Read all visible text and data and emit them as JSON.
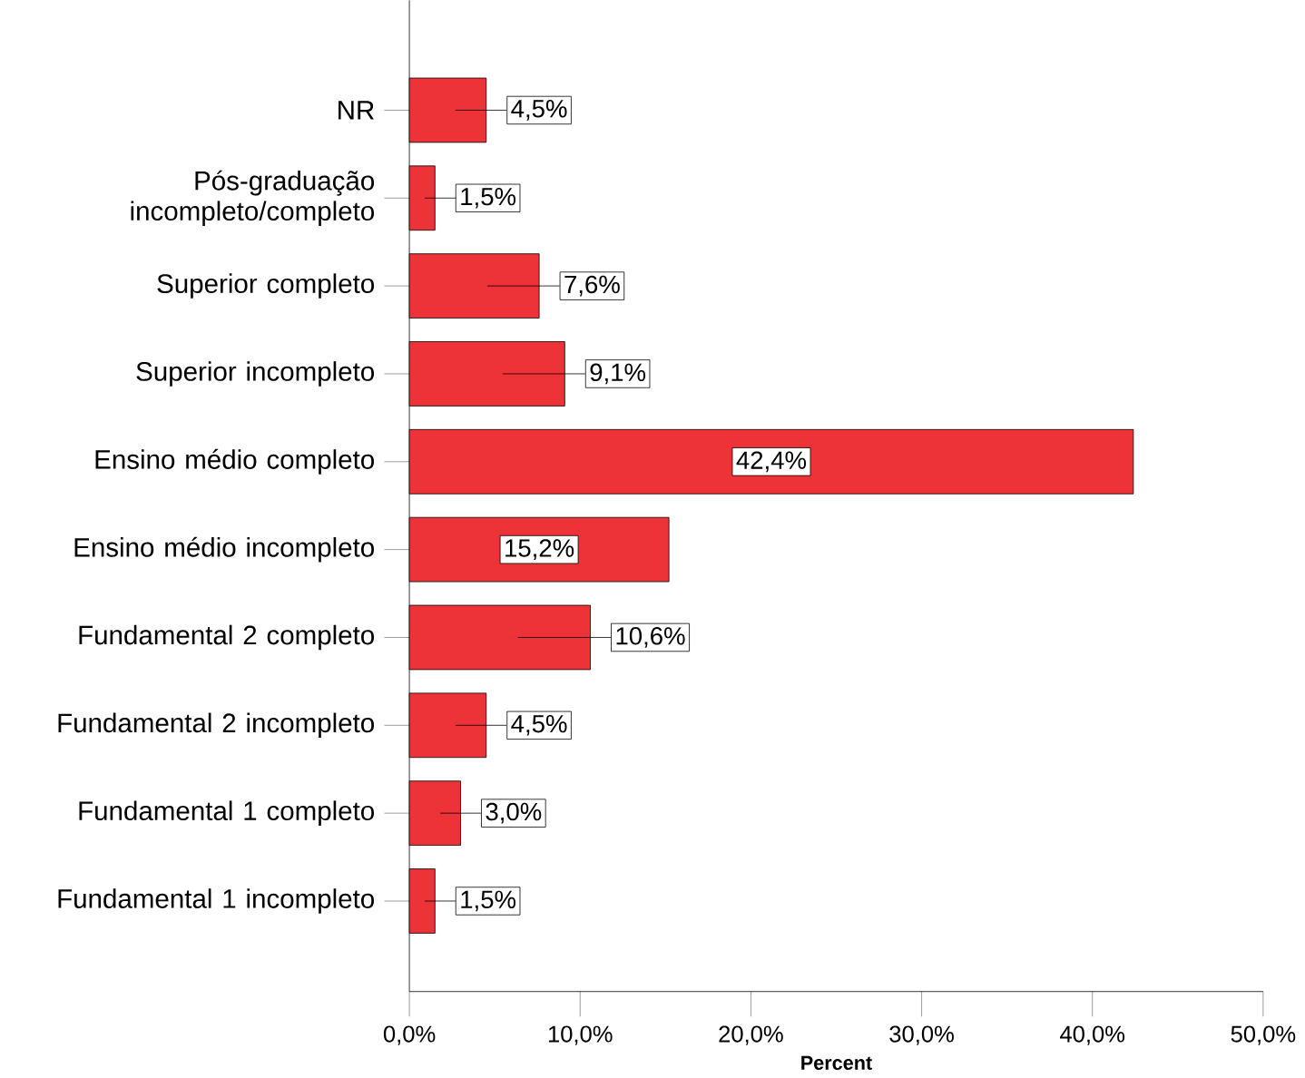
{
  "chart_data": {
    "type": "bar",
    "orientation": "horizontal",
    "xlabel": "Percent",
    "categories": [
      "NR",
      "Pós-graduação incompleto/completo",
      "Superior completo",
      "Superior incompleto",
      "Ensino médio completo",
      "Ensino médio incompleto",
      "Fundamental 2 completo",
      "Fundamental 2 incompleto",
      "Fundamental 1 completo",
      "Fundamental 1 incompleto"
    ],
    "values": [
      4.5,
      1.5,
      7.6,
      9.1,
      42.4,
      15.2,
      10.6,
      4.5,
      3.0,
      1.5
    ],
    "value_labels": [
      "4,5%",
      "1,5%",
      "7,6%",
      "9,1%",
      "42,4%",
      "15,2%",
      "10,6%",
      "4,5%",
      "3,0%",
      "1,5%"
    ],
    "color": "#ee3338",
    "xlim": [
      0,
      50
    ],
    "xticks": [
      {
        "value": 0,
        "label": "0,0%"
      },
      {
        "value": 10,
        "label": "10,0%"
      },
      {
        "value": 20,
        "label": "20,0%"
      },
      {
        "value": 30,
        "label": "30,0%"
      },
      {
        "value": 40,
        "label": "40,0%"
      },
      {
        "value": 50,
        "label": "50,0%"
      }
    ],
    "data_labels": false
  }
}
